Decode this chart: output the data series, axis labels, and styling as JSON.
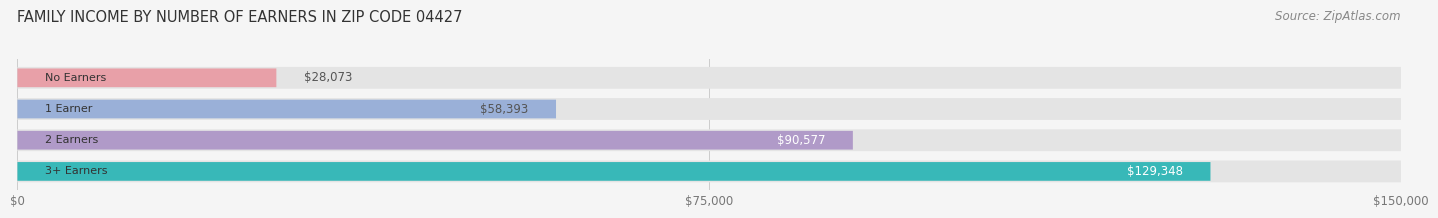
{
  "title": "FAMILY INCOME BY NUMBER OF EARNERS IN ZIP CODE 04427",
  "source": "Source: ZipAtlas.com",
  "categories": [
    "No Earners",
    "1 Earner",
    "2 Earners",
    "3+ Earners"
  ],
  "values": [
    28073,
    58393,
    90577,
    129348
  ],
  "bar_colors": [
    "#e8a0a8",
    "#9ab0d8",
    "#b09ac8",
    "#38b8b8"
  ],
  "track_color": "#e4e4e4",
  "label_colors": [
    "#555555",
    "#555555",
    "#ffffff",
    "#ffffff"
  ],
  "x_ticks": [
    0,
    75000,
    150000
  ],
  "x_tick_labels": [
    "$0",
    "$75,000",
    "$150,000"
  ],
  "xlim": [
    0,
    150000
  ],
  "background_color": "#f5f5f5",
  "title_fontsize": 10.5,
  "source_fontsize": 8.5,
  "bar_label_fontsize": 8.5,
  "category_fontsize": 8.0,
  "tick_fontsize": 8.5
}
